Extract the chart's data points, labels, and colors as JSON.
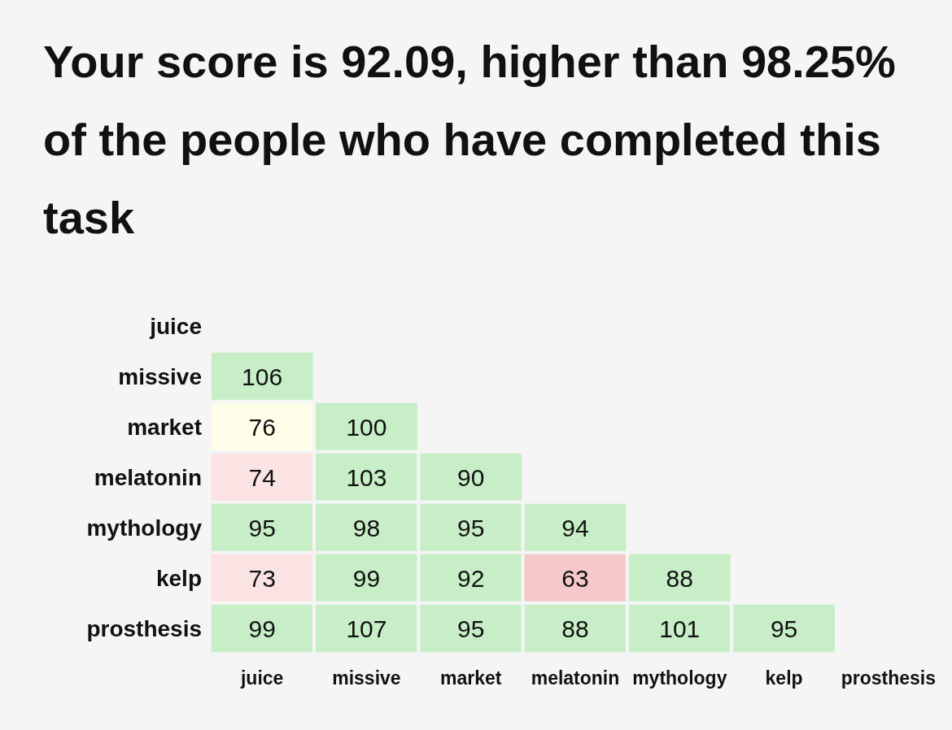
{
  "chart_data": {
    "type": "heatmap",
    "title": "Your score is 92.09, higher than 98.25% of the people who have completed this task",
    "categories": [
      "juice",
      "missive",
      "market",
      "melatonin",
      "mythology",
      "kelp",
      "prosthesis"
    ],
    "y_categories": [
      "juice",
      "missive",
      "market",
      "melatonin",
      "mythology",
      "kelp",
      "prosthesis"
    ],
    "cells": [
      [
        null,
        null,
        null,
        null,
        null,
        null,
        null
      ],
      [
        106,
        null,
        null,
        null,
        null,
        null,
        null
      ],
      [
        76,
        100,
        null,
        null,
        null,
        null,
        null
      ],
      [
        74,
        103,
        90,
        null,
        null,
        null,
        null
      ],
      [
        95,
        98,
        95,
        94,
        null,
        null,
        null
      ],
      [
        73,
        99,
        92,
        63,
        88,
        null,
        null
      ],
      [
        99,
        107,
        95,
        88,
        101,
        95,
        null
      ]
    ],
    "colors": [
      [
        null,
        null,
        null,
        null,
        null,
        null,
        null
      ],
      [
        "#c8eec8",
        null,
        null,
        null,
        null,
        null,
        null
      ],
      [
        "#fefde8",
        "#c8eec8",
        null,
        null,
        null,
        null,
        null
      ],
      [
        "#fbe3e3",
        "#c8eec8",
        "#c8eec8",
        null,
        null,
        null,
        null
      ],
      [
        "#c8eec8",
        "#c8eec8",
        "#c8eec8",
        "#c8eec8",
        null,
        null,
        null
      ],
      [
        "#fbe3e3",
        "#c8eec8",
        "#c8eec8",
        "#f5c9ca",
        "#c8eec8",
        null,
        null
      ],
      [
        "#c8eec8",
        "#c8eec8",
        "#c8eec8",
        "#c8eec8",
        "#c8eec8",
        "#c8eec8",
        null
      ]
    ],
    "data_labels": true
  }
}
